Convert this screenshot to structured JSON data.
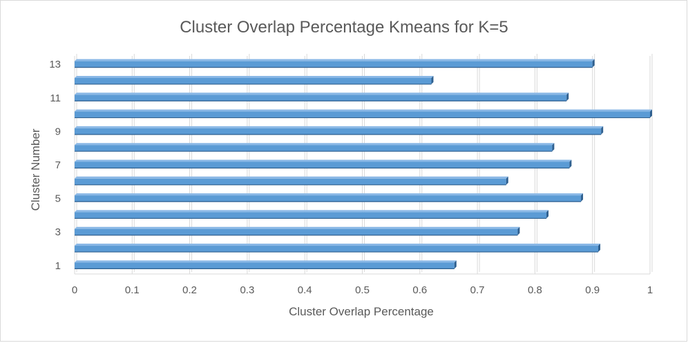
{
  "chart_data": {
    "type": "bar",
    "orientation": "horizontal",
    "title": "Cluster Overlap Percentage Kmeans for K=5",
    "xlabel": "Cluster Overlap Percentage",
    "ylabel": "Cluster Number",
    "categories": [
      1,
      2,
      3,
      4,
      5,
      6,
      7,
      8,
      9,
      10,
      11,
      12,
      13
    ],
    "y_tick_labels": [
      "1",
      "3",
      "5",
      "7",
      "9",
      "11",
      "13"
    ],
    "x_tick_labels": [
      "0",
      "0.1",
      "0.2",
      "0.3",
      "0.4",
      "0.5",
      "0.6",
      "0.7",
      "0.8",
      "0.9",
      "1"
    ],
    "values": [
      0.66,
      0.91,
      0.77,
      0.82,
      0.88,
      0.75,
      0.86,
      0.83,
      0.915,
      1.0,
      0.855,
      0.62,
      0.9
    ],
    "xlim": [
      0,
      1
    ],
    "grid": "vertical",
    "legend": "none",
    "colors": {
      "bar_face": "#5b9bd5",
      "bar_top": "#8ab8e6",
      "bar_side": "#2e5f8f",
      "grid": "#d9d9d9",
      "text": "#595959"
    }
  }
}
